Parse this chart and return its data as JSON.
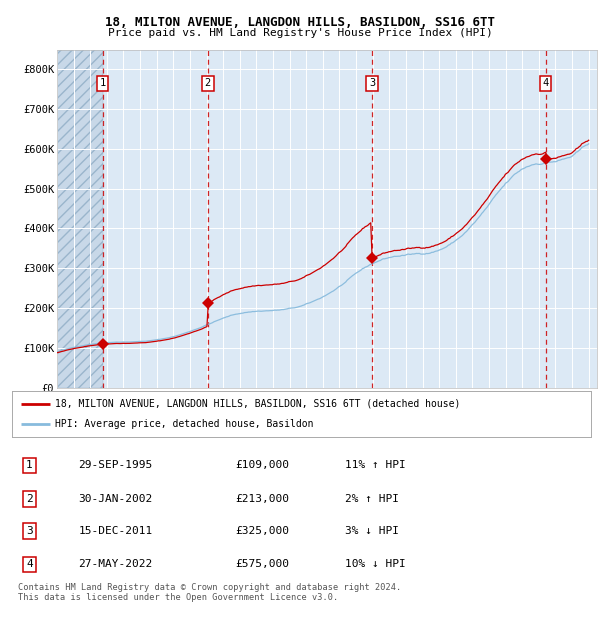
{
  "title1": "18, MILTON AVENUE, LANGDON HILLS, BASILDON, SS16 6TT",
  "title2": "Price paid vs. HM Land Registry's House Price Index (HPI)",
  "ylim": [
    0,
    850000
  ],
  "yticks": [
    0,
    100000,
    200000,
    300000,
    400000,
    500000,
    600000,
    700000,
    800000
  ],
  "ytick_labels": [
    "£0",
    "£100K",
    "£200K",
    "£300K",
    "£400K",
    "£500K",
    "£600K",
    "£700K",
    "£800K"
  ],
  "sale_dates_num": [
    1995.747,
    2002.08,
    2011.956,
    2022.41
  ],
  "sale_prices": [
    109000,
    213000,
    325000,
    575000
  ],
  "sale_labels": [
    "1",
    "2",
    "3",
    "4"
  ],
  "legend_line1": "18, MILTON AVENUE, LANGDON HILLS, BASILDON, SS16 6TT (detached house)",
  "legend_line2": "HPI: Average price, detached house, Basildon",
  "table_data": [
    [
      "1",
      "29-SEP-1995",
      "£109,000",
      "11% ↑ HPI"
    ],
    [
      "2",
      "30-JAN-2002",
      "£213,000",
      "2% ↑ HPI"
    ],
    [
      "3",
      "15-DEC-2011",
      "£325,000",
      "3% ↓ HPI"
    ],
    [
      "4",
      "27-MAY-2022",
      "£575,000",
      "10% ↓ HPI"
    ]
  ],
  "footer": "Contains HM Land Registry data © Crown copyright and database right 2024.\nThis data is licensed under the Open Government Licence v3.0.",
  "bg_color": "#dce9f5",
  "hatch_color": "#c8d8e8",
  "grid_color": "#ffffff",
  "red_line_color": "#cc0000",
  "blue_line_color": "#88bbdd",
  "vline_color": "#cc0000",
  "dot_color": "#cc0000",
  "xlim_start": 1993.0,
  "xlim_end": 2025.5
}
